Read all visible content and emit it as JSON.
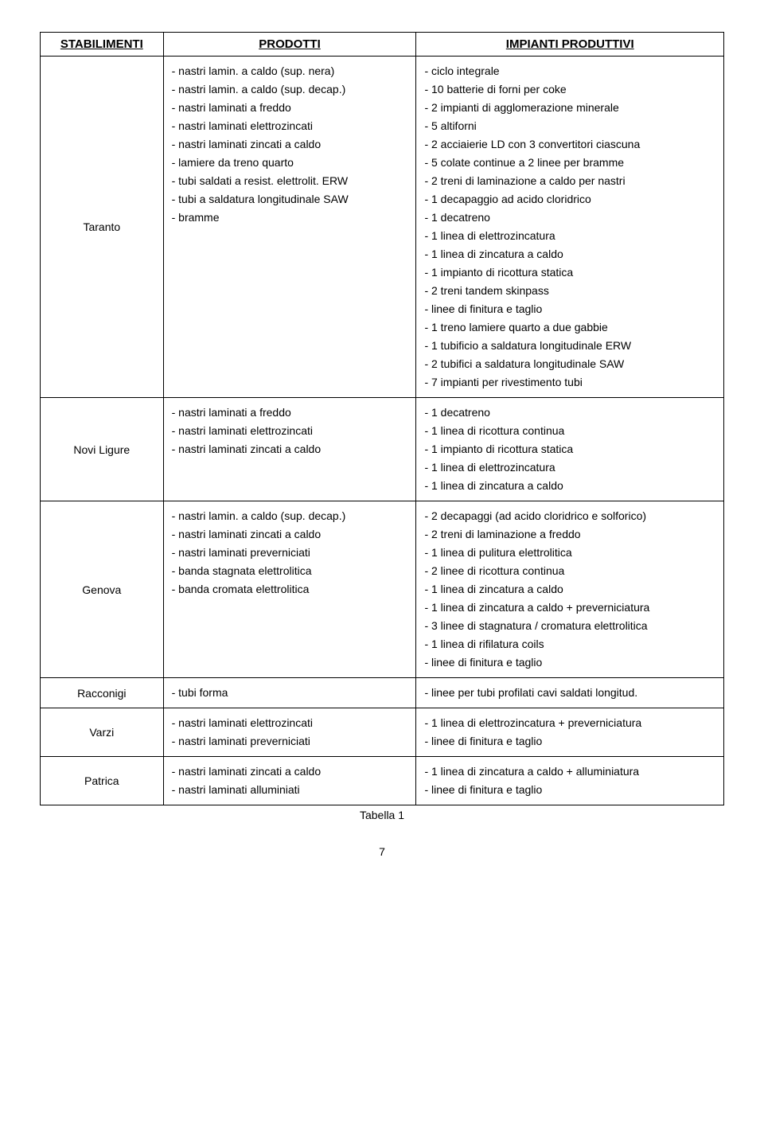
{
  "headers": {
    "stabilimenti": "STABILIMENTI",
    "prodotti": "PRODOTTI",
    "impianti": "IMPIANTI PRODUTTIVI"
  },
  "rows": [
    {
      "stab": "Taranto",
      "prod": [
        "- nastri lamin. a caldo (sup. nera)",
        "- nastri lamin. a caldo (sup. decap.)",
        "- nastri laminati a freddo",
        "- nastri laminati elettrozincati",
        "- nastri laminati zincati a caldo",
        "- lamiere da treno quarto",
        "- tubi saldati a resist. elettrolit. ERW",
        "- tubi a saldatura longitudinale SAW",
        "- bramme"
      ],
      "imp": [
        "- ciclo integrale",
        "- 10 batterie di forni per coke",
        "- 2 impianti di agglomerazione minerale",
        "- 5 altiforni",
        "- 2 acciaierie LD con 3 convertitori ciascuna",
        "- 5 colate continue a 2 linee per bramme",
        "- 2 treni di laminazione a caldo per nastri",
        "- 1 decapaggio ad acido cloridrico",
        "- 1 decatreno",
        "- 1 linea di elettrozincatura",
        "- 1 linea di zincatura a caldo",
        "- 1 impianto di ricottura statica",
        "- 2 treni tandem skinpass",
        "- linee di finitura e taglio",
        "- 1 treno lamiere quarto a due gabbie",
        "- 1 tubificio a saldatura longitudinale ERW",
        "- 2 tubifici a saldatura longitudinale SAW",
        "- 7 impianti per rivestimento tubi"
      ]
    },
    {
      "stab": "Novi Ligure",
      "prod": [
        "- nastri laminati a freddo",
        "- nastri laminati elettrozincati",
        "- nastri laminati zincati a caldo"
      ],
      "imp": [
        "- 1 decatreno",
        "- 1 linea di ricottura continua",
        "- 1 impianto di ricottura statica",
        "- 1 linea di elettrozincatura",
        "- 1 linea di zincatura a caldo"
      ]
    },
    {
      "stab": "Genova",
      "prod": [
        "- nastri lamin. a caldo (sup. decap.)",
        "- nastri laminati zincati a caldo",
        "- nastri laminati preverniciati",
        "- banda stagnata elettrolitica",
        "- banda cromata elettrolitica"
      ],
      "imp": [
        "- 2 decapaggi (ad acido cloridrico e solforico)",
        "- 2 treni di laminazione a freddo",
        "- 1 linea di pulitura elettrolitica",
        "- 2 linee di ricottura continua",
        "- 1 linea di zincatura a caldo",
        "- 1 linea di zincatura a caldo + preverniciatura",
        "- 3 linee di stagnatura / cromatura elettrolitica",
        "- 1 linea di rifilatura coils",
        "- linee di finitura e taglio"
      ]
    },
    {
      "stab": "Racconigi",
      "prod": [
        "- tubi forma"
      ],
      "imp": [
        "- linee per tubi profilati cavi saldati longitud."
      ]
    },
    {
      "stab": "Varzi",
      "prod": [
        "- nastri laminati elettrozincati",
        "- nastri laminati preverniciati"
      ],
      "imp": [
        "- 1 linea di elettrozincatura + preverniciatura",
        "- linee di finitura e taglio"
      ]
    },
    {
      "stab": "Patrica",
      "prod": [
        "- nastri laminati zincati a caldo",
        "- nastri laminati alluminiati"
      ],
      "imp": [
        "- 1 linea di zincatura a caldo + alluminiatura",
        "- linee di finitura e taglio"
      ]
    }
  ],
  "footer": {
    "tabella": "Tabella 1",
    "page": "7"
  }
}
